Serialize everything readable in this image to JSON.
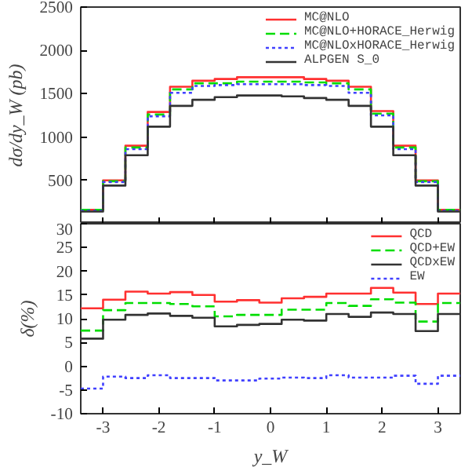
{
  "chart_data": [
    {
      "type": "histogram",
      "ylabel": "dσ/dy_W (pb)",
      "bins": [
        -3.4,
        -3.0,
        -2.6,
        -2.2,
        -1.8,
        -1.4,
        -1.0,
        -0.6,
        -0.2,
        0.2,
        0.6,
        1.0,
        1.4,
        1.8,
        2.2,
        2.6,
        3.0,
        3.4
      ],
      "xlim": [
        -3.4,
        3.4
      ],
      "xticks": [
        -3,
        -2,
        -1,
        0,
        1,
        2,
        3
      ],
      "ylim": [
        0,
        2500
      ],
      "yticks": [
        500,
        1000,
        1500,
        2000,
        2500
      ],
      "tick_labels": "y",
      "legend": "top right",
      "grid": false,
      "series": [
        {
          "name": "MC@NLO",
          "color": "#ff3030",
          "line_style": "solid",
          "values": [
            160,
            500,
            900,
            1290,
            1580,
            1650,
            1670,
            1690,
            1690,
            1690,
            1670,
            1650,
            1580,
            1300,
            900,
            500,
            160
          ]
        },
        {
          "name": "MC@NLO+HORACE_Herwig",
          "color": "#00dd00",
          "line_style": "dashed",
          "values": [
            160,
            490,
            880,
            1260,
            1550,
            1620,
            1620,
            1640,
            1640,
            1640,
            1630,
            1620,
            1550,
            1270,
            880,
            490,
            160
          ]
        },
        {
          "name": "MC@NLOxHORACE_Herwig",
          "color": "#4040ff",
          "line_style": "dotted",
          "values": [
            150,
            480,
            860,
            1240,
            1510,
            1590,
            1600,
            1610,
            1610,
            1610,
            1600,
            1590,
            1510,
            1250,
            860,
            480,
            150
          ]
        },
        {
          "name": "ALPGEN S_0",
          "color": "#333333",
          "line_style": "solid",
          "values": [
            140,
            440,
            790,
            1120,
            1360,
            1430,
            1460,
            1480,
            1480,
            1470,
            1450,
            1430,
            1360,
            1120,
            790,
            440,
            140
          ]
        }
      ]
    },
    {
      "type": "histogram",
      "xlabel": "y_W",
      "ylabel": "δ(%)",
      "bins": [
        -3.4,
        -3.0,
        -2.6,
        -2.2,
        -1.8,
        -1.4,
        -1.0,
        -0.6,
        -0.2,
        0.2,
        0.6,
        1.0,
        1.4,
        1.8,
        2.2,
        2.6,
        3.0,
        3.4
      ],
      "xlim": [
        -3.4,
        3.4
      ],
      "xticks": [
        -3,
        -2,
        -1,
        0,
        1,
        2,
        3
      ],
      "ylim": [
        -10,
        30
      ],
      "yticks": [
        -10,
        -5,
        0,
        5,
        10,
        15,
        20,
        25,
        30
      ],
      "legend": "top right",
      "grid": false,
      "series": [
        {
          "name": "QCD",
          "color": "#ff3030",
          "line_style": "solid",
          "values": [
            12.2,
            14,
            15.7,
            15.3,
            15.6,
            15,
            13.6,
            13.9,
            13.4,
            14.3,
            14.6,
            15.3,
            15.3,
            16.5,
            15.5,
            13.1,
            15.3
          ]
        },
        {
          "name": "QCD+EW",
          "color": "#00dd00",
          "line_style": "dashed",
          "values": [
            7.5,
            11.8,
            13.3,
            13.3,
            13.1,
            12.6,
            10.5,
            10.8,
            10.8,
            11.9,
            11.9,
            13.3,
            12.7,
            14.1,
            13.4,
            9.4,
            13.3
          ]
        },
        {
          "name": "QCDxEW",
          "color": "#333333",
          "line_style": "solid",
          "values": [
            5.8,
            9.8,
            10.8,
            11.1,
            10.6,
            10.2,
            8.4,
            8.7,
            8.9,
            9.8,
            9.6,
            11.0,
            10.4,
            11.3,
            11.0,
            7.4,
            11.0
          ]
        },
        {
          "name": "EW",
          "color": "#4040ff",
          "line_style": "dotted",
          "values": [
            -4.7,
            -2.2,
            -2.5,
            -1.9,
            -2.5,
            -2.5,
            -3.0,
            -3.0,
            -2.6,
            -2.4,
            -2.5,
            -1.9,
            -2.4,
            -2.4,
            -2.0,
            -3.7,
            -2.0
          ]
        }
      ]
    }
  ]
}
